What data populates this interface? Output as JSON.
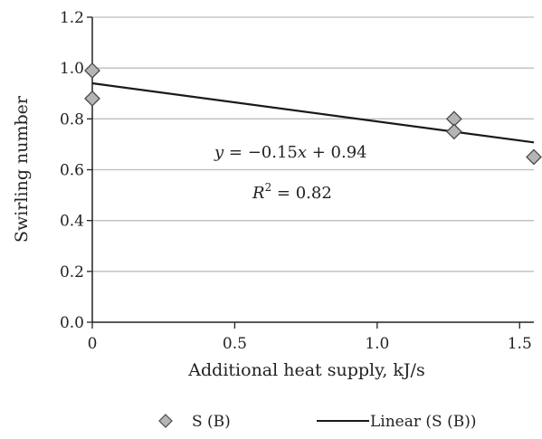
{
  "chart_data": {
    "type": "scatter",
    "title": "",
    "xlabel": "Additional heat supply, kJ/s",
    "ylabel": "Swirling number",
    "xlim": [
      0,
      1.55
    ],
    "ylim": [
      0,
      1.2
    ],
    "x_ticks": [
      "0",
      "0.5",
      "1.0",
      "1.5"
    ],
    "y_ticks": [
      "0.0",
      "0.2",
      "0.4",
      "0.6",
      "0.8",
      "1.0",
      "1.2"
    ],
    "grid": "horizontal",
    "series": [
      {
        "name": "S (B)",
        "marker": "diamond",
        "color": "#b5b5b5",
        "points": [
          {
            "x": 0,
            "y": 0.99
          },
          {
            "x": 0,
            "y": 0.88
          },
          {
            "x": 1.27,
            "y": 0.8
          },
          {
            "x": 1.27,
            "y": 0.75
          },
          {
            "x": 1.55,
            "y": 0.65
          }
        ]
      }
    ],
    "trendline": {
      "name": "Linear (S (B))",
      "type": "linear",
      "slope": -0.15,
      "intercept": 0.94,
      "color": "#1a1a1a"
    },
    "annotations": {
      "equation_prefix": "y",
      "equation_middle": " = −0.15",
      "equation_var": "x",
      "equation_suffix": " + 0.94",
      "r2_prefix": "R",
      "r2_sup": "2",
      "r2_suffix": " = 0.82"
    },
    "legend": {
      "position": "bottom",
      "entries": [
        "S (B)",
        "Linear (S (B))"
      ]
    }
  }
}
